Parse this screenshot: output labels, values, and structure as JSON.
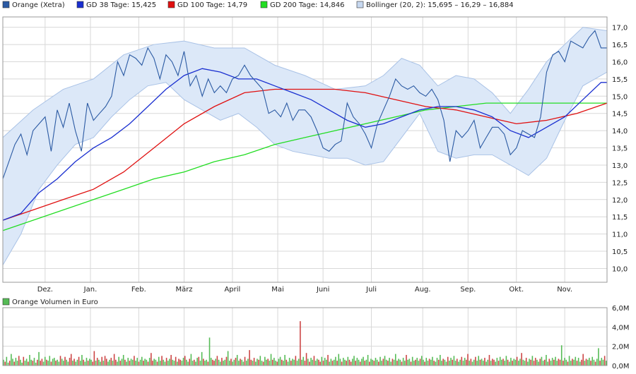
{
  "legend": {
    "orange": "Orange (Xetra)",
    "gd38": "GD 38 Tage: 15,425",
    "gd100": "GD 100 Tage: 14,79",
    "gd200": "GD 200 Tage: 14,846",
    "bollinger": "Bollinger (20, 2): 15,695 – 16,29 – 16,884",
    "volume": "Orange Volumen in Euro"
  },
  "colors": {
    "price": "#2b5aa3",
    "gd38": "#1a2fd0",
    "gd100": "#e01010",
    "gd200": "#22dd22",
    "band_fill": "#dce8f8",
    "band_line": "#a9c2e6",
    "grid": "#d8d8d8",
    "vol_up": "#55bb55",
    "vol_down": "#cc4444"
  },
  "chart_data": {
    "type": "line",
    "x_labels": [
      "Dez.",
      "Jan.",
      "Feb.",
      "März",
      "April",
      "Mai",
      "Juni",
      "Juli",
      "Aug.",
      "Sep.",
      "Okt.",
      "Nov."
    ],
    "y_ticks": [
      "10,0",
      "10,5",
      "11,0",
      "11,5",
      "12,0",
      "12,5",
      "13,0",
      "13,5",
      "14,0",
      "14,5",
      "15,0",
      "15,5",
      "16,0",
      "16,5",
      "17,0"
    ],
    "ylim": [
      9.6,
      17.3
    ],
    "vol_ticks": [
      "0,0M",
      "2,0M",
      "4,0M",
      "6,0M"
    ],
    "vol_lim": [
      0,
      6
    ],
    "x_range": [
      0,
      100
    ],
    "month_positions": [
      7,
      14.5,
      22.5,
      30,
      38,
      45.5,
      53,
      61,
      69.5,
      77,
      85,
      93
    ],
    "series": [
      {
        "name": "Orange (Xetra)",
        "points": [
          [
            0,
            12.6
          ],
          [
            1,
            13.1
          ],
          [
            2,
            13.6
          ],
          [
            3,
            13.9
          ],
          [
            4,
            13.3
          ],
          [
            5,
            14.0
          ],
          [
            6,
            14.2
          ],
          [
            7,
            14.4
          ],
          [
            8,
            13.4
          ],
          [
            9,
            14.6
          ],
          [
            10,
            14.1
          ],
          [
            11,
            14.8
          ],
          [
            12,
            14.0
          ],
          [
            13,
            13.4
          ],
          [
            14,
            14.8
          ],
          [
            15,
            14.3
          ],
          [
            16,
            14.5
          ],
          [
            17,
            14.7
          ],
          [
            18,
            15.0
          ],
          [
            19,
            16.0
          ],
          [
            20,
            15.6
          ],
          [
            21,
            16.2
          ],
          [
            22,
            16.1
          ],
          [
            23,
            15.9
          ],
          [
            24,
            16.4
          ],
          [
            25,
            16.1
          ],
          [
            26,
            15.5
          ],
          [
            27,
            16.2
          ],
          [
            28,
            16.0
          ],
          [
            29,
            15.6
          ],
          [
            30,
            16.3
          ],
          [
            31,
            15.3
          ],
          [
            32,
            15.6
          ],
          [
            33,
            15.0
          ],
          [
            34,
            15.5
          ],
          [
            35,
            15.1
          ],
          [
            36,
            15.3
          ],
          [
            37,
            15.1
          ],
          [
            38,
            15.5
          ],
          [
            39,
            15.6
          ],
          [
            40,
            15.9
          ],
          [
            41,
            15.6
          ],
          [
            42,
            15.4
          ],
          [
            43,
            15.2
          ],
          [
            44,
            14.5
          ],
          [
            45,
            14.6
          ],
          [
            46,
            14.4
          ],
          [
            47,
            14.8
          ],
          [
            48,
            14.3
          ],
          [
            49,
            14.6
          ],
          [
            50,
            14.6
          ],
          [
            51,
            14.4
          ],
          [
            52,
            14.0
          ],
          [
            53,
            13.5
          ],
          [
            54,
            13.4
          ],
          [
            55,
            13.6
          ],
          [
            56,
            13.7
          ],
          [
            57,
            14.8
          ],
          [
            58,
            14.4
          ],
          [
            59,
            14.2
          ],
          [
            60,
            13.9
          ],
          [
            61,
            13.5
          ],
          [
            62,
            14.2
          ],
          [
            63,
            14.6
          ],
          [
            64,
            15.0
          ],
          [
            65,
            15.5
          ],
          [
            66,
            15.3
          ],
          [
            67,
            15.2
          ],
          [
            68,
            15.3
          ],
          [
            69,
            15.1
          ],
          [
            70,
            15.0
          ],
          [
            71,
            15.2
          ],
          [
            72,
            14.9
          ],
          [
            73,
            14.3
          ],
          [
            74,
            13.1
          ],
          [
            75,
            14.0
          ],
          [
            76,
            13.8
          ],
          [
            77,
            14.0
          ],
          [
            78,
            14.3
          ],
          [
            79,
            13.5
          ],
          [
            80,
            13.8
          ],
          [
            81,
            14.1
          ],
          [
            82,
            14.1
          ],
          [
            83,
            13.9
          ],
          [
            84,
            13.3
          ],
          [
            85,
            13.5
          ],
          [
            86,
            14.0
          ],
          [
            87,
            13.9
          ],
          [
            88,
            13.8
          ],
          [
            89,
            14.4
          ],
          [
            90,
            15.7
          ],
          [
            91,
            16.2
          ],
          [
            92,
            16.3
          ],
          [
            93,
            16.0
          ],
          [
            94,
            16.6
          ],
          [
            95,
            16.5
          ],
          [
            96,
            16.4
          ],
          [
            97,
            16.7
          ],
          [
            98,
            16.9
          ],
          [
            99,
            16.4
          ],
          [
            100,
            16.4
          ]
        ]
      },
      {
        "name": "GD 38 Tage",
        "points": [
          [
            0,
            11.4
          ],
          [
            3,
            11.6
          ],
          [
            6,
            12.2
          ],
          [
            9,
            12.6
          ],
          [
            12,
            13.1
          ],
          [
            15,
            13.5
          ],
          [
            18,
            13.8
          ],
          [
            21,
            14.2
          ],
          [
            24,
            14.7
          ],
          [
            27,
            15.2
          ],
          [
            30,
            15.6
          ],
          [
            33,
            15.8
          ],
          [
            36,
            15.7
          ],
          [
            39,
            15.5
          ],
          [
            42,
            15.5
          ],
          [
            45,
            15.3
          ],
          [
            48,
            15.1
          ],
          [
            51,
            14.9
          ],
          [
            54,
            14.6
          ],
          [
            57,
            14.3
          ],
          [
            60,
            14.1
          ],
          [
            63,
            14.2
          ],
          [
            66,
            14.4
          ],
          [
            69,
            14.6
          ],
          [
            72,
            14.7
          ],
          [
            75,
            14.7
          ],
          [
            78,
            14.6
          ],
          [
            81,
            14.4
          ],
          [
            84,
            14.0
          ],
          [
            87,
            13.8
          ],
          [
            90,
            14.1
          ],
          [
            93,
            14.4
          ],
          [
            96,
            14.9
          ],
          [
            99,
            15.4
          ],
          [
            100,
            15.4
          ]
        ]
      },
      {
        "name": "GD 100 Tage",
        "points": [
          [
            0,
            11.4
          ],
          [
            5,
            11.7
          ],
          [
            10,
            12.0
          ],
          [
            15,
            12.3
          ],
          [
            20,
            12.8
          ],
          [
            25,
            13.5
          ],
          [
            30,
            14.2
          ],
          [
            35,
            14.7
          ],
          [
            40,
            15.1
          ],
          [
            45,
            15.2
          ],
          [
            50,
            15.2
          ],
          [
            55,
            15.2
          ],
          [
            60,
            15.1
          ],
          [
            65,
            14.9
          ],
          [
            70,
            14.7
          ],
          [
            75,
            14.6
          ],
          [
            80,
            14.4
          ],
          [
            85,
            14.2
          ],
          [
            90,
            14.3
          ],
          [
            95,
            14.5
          ],
          [
            100,
            14.8
          ]
        ]
      },
      {
        "name": "GD 200 Tage",
        "points": [
          [
            0,
            11.1
          ],
          [
            5,
            11.4
          ],
          [
            10,
            11.7
          ],
          [
            15,
            12.0
          ],
          [
            20,
            12.3
          ],
          [
            25,
            12.6
          ],
          [
            30,
            12.8
          ],
          [
            35,
            13.1
          ],
          [
            40,
            13.3
          ],
          [
            45,
            13.6
          ],
          [
            50,
            13.8
          ],
          [
            55,
            14.0
          ],
          [
            60,
            14.2
          ],
          [
            65,
            14.4
          ],
          [
            70,
            14.6
          ],
          [
            75,
            14.7
          ],
          [
            80,
            14.8
          ],
          [
            85,
            14.8
          ],
          [
            90,
            14.8
          ],
          [
            95,
            14.8
          ],
          [
            100,
            14.8
          ]
        ]
      }
    ],
    "bollinger_upper": [
      [
        0,
        13.8
      ],
      [
        5,
        14.6
      ],
      [
        10,
        15.2
      ],
      [
        15,
        15.5
      ],
      [
        20,
        16.2
      ],
      [
        25,
        16.5
      ],
      [
        30,
        16.6
      ],
      [
        35,
        16.4
      ],
      [
        40,
        16.4
      ],
      [
        45,
        15.9
      ],
      [
        50,
        15.6
      ],
      [
        55,
        15.2
      ],
      [
        60,
        15.3
      ],
      [
        63,
        15.6
      ],
      [
        66,
        16.1
      ],
      [
        69,
        15.9
      ],
      [
        72,
        15.3
      ],
      [
        75,
        15.6
      ],
      [
        78,
        15.5
      ],
      [
        81,
        15.1
      ],
      [
        84,
        14.5
      ],
      [
        87,
        15.2
      ],
      [
        90,
        16.0
      ],
      [
        93,
        16.5
      ],
      [
        96,
        17.0
      ],
      [
        100,
        16.9
      ]
    ],
    "bollinger_lower": [
      [
        0,
        10.1
      ],
      [
        3,
        11.0
      ],
      [
        6,
        12.3
      ],
      [
        9,
        13.0
      ],
      [
        12,
        13.6
      ],
      [
        15,
        13.8
      ],
      [
        18,
        14.4
      ],
      [
        21,
        14.9
      ],
      [
        24,
        15.3
      ],
      [
        27,
        15.4
      ],
      [
        30,
        14.9
      ],
      [
        33,
        14.6
      ],
      [
        36,
        14.3
      ],
      [
        39,
        14.5
      ],
      [
        42,
        14.1
      ],
      [
        45,
        13.6
      ],
      [
        48,
        13.4
      ],
      [
        51,
        13.3
      ],
      [
        54,
        13.2
      ],
      [
        57,
        13.2
      ],
      [
        60,
        13.0
      ],
      [
        63,
        13.1
      ],
      [
        66,
        13.8
      ],
      [
        69,
        14.5
      ],
      [
        72,
        13.4
      ],
      [
        75,
        13.2
      ],
      [
        78,
        13.3
      ],
      [
        81,
        13.3
      ],
      [
        84,
        13.0
      ],
      [
        87,
        12.7
      ],
      [
        90,
        13.2
      ],
      [
        93,
        14.3
      ],
      [
        96,
        15.3
      ],
      [
        100,
        15.7
      ]
    ],
    "volume": [
      0.6,
      0.4,
      0.9,
      0.3,
      0.5,
      1.2,
      0.7,
      0.4,
      0.8,
      0.5,
      1.0,
      0.6,
      0.3,
      0.9,
      0.5,
      0.7,
      0.4,
      1.1,
      0.6,
      0.5,
      0.8,
      0.3,
      0.6,
      1.4,
      0.5,
      0.7,
      0.4,
      0.9,
      0.6,
      0.5,
      1.0,
      0.4,
      0.7,
      0.8,
      0.5,
      0.6,
      0.4,
      1.0,
      0.7,
      0.5,
      0.9,
      0.6,
      0.4,
      0.8,
      1.2,
      0.5,
      0.7,
      0.4,
      0.6,
      0.9,
      0.5,
      1.1,
      0.6,
      0.4,
      0.8,
      0.5,
      0.7,
      0.6,
      0.4,
      1.5,
      0.5,
      0.8,
      0.6,
      0.4,
      0.9,
      0.5,
      1.0,
      0.7,
      0.4,
      0.6,
      0.8,
      0.5,
      1.2,
      0.6,
      0.4,
      0.9,
      0.5,
      0.7,
      1.1,
      0.6,
      0.4,
      0.8,
      0.5,
      0.7,
      0.6,
      1.0,
      0.5,
      0.8,
      0.4,
      0.6,
      0.9,
      0.5,
      0.7,
      0.6,
      0.4,
      0.8,
      1.3,
      0.5,
      0.7,
      0.6,
      0.4,
      0.9,
      0.5,
      1.0,
      0.6,
      0.4,
      0.8,
      0.5,
      0.7,
      1.1,
      0.6,
      0.5,
      0.9,
      0.4,
      0.7,
      0.6,
      0.5,
      0.8,
      1.0,
      0.6,
      0.4,
      0.7,
      1.2,
      0.5,
      0.6,
      0.4,
      0.8,
      0.9,
      0.5,
      1.4,
      0.7,
      0.5,
      0.6,
      0.4,
      2.9,
      0.8,
      0.6,
      0.5,
      0.7,
      1.0,
      0.6,
      0.4,
      0.8,
      0.5,
      0.6,
      0.9,
      1.5,
      0.5,
      0.7,
      0.4,
      0.6,
      0.8,
      1.1,
      0.5,
      0.7,
      0.6,
      0.4,
      0.9,
      0.5,
      0.7,
      1.6,
      0.6,
      0.5,
      0.8,
      0.4,
      0.7,
      0.6,
      1.0,
      0.5,
      0.4,
      0.9,
      0.6,
      0.7,
      0.5,
      1.2,
      0.6,
      0.8,
      0.5,
      0.4,
      0.7,
      0.9,
      0.6,
      0.5,
      1.1,
      0.6,
      0.4,
      0.8,
      0.5,
      0.7,
      0.6,
      1.0,
      0.5,
      0.7,
      4.6,
      0.6,
      0.9,
      0.5,
      1.3,
      0.7,
      0.4,
      0.8,
      0.6,
      1.0,
      0.5,
      0.7,
      0.6,
      0.4,
      0.9,
      0.5,
      0.8,
      0.6,
      1.1,
      0.4,
      0.7,
      0.5,
      0.6,
      0.9,
      0.5,
      1.2,
      0.7,
      0.4,
      0.8,
      0.6,
      0.5,
      0.9,
      0.6,
      0.4,
      0.7,
      1.0,
      0.5,
      0.8,
      0.6,
      0.4,
      0.7,
      0.9,
      0.5,
      0.6,
      1.1,
      0.4,
      0.7,
      0.6,
      0.5,
      0.8,
      0.6,
      0.4,
      0.9,
      0.5,
      0.7,
      1.0,
      0.6,
      0.5,
      0.8,
      0.4,
      0.7,
      0.6,
      1.2,
      0.5,
      0.7,
      0.6,
      0.4,
      0.8,
      0.5,
      1.1,
      0.6,
      0.7,
      0.4,
      0.9,
      0.5,
      0.6,
      0.8,
      0.5,
      0.7,
      1.0,
      0.6,
      0.4,
      0.8,
      0.5,
      0.7,
      0.6,
      0.9,
      0.5,
      0.4,
      0.8,
      0.6,
      1.1,
      0.5,
      0.7,
      0.6,
      0.4,
      0.9,
      0.5,
      0.8,
      0.6,
      1.0,
      0.5,
      0.7,
      0.4,
      0.6,
      0.9,
      0.5,
      0.8,
      0.6,
      1.2,
      0.5,
      0.7,
      0.4,
      0.6,
      0.9,
      0.5,
      1.0,
      0.6,
      0.7,
      0.5,
      0.8,
      0.4,
      0.6,
      1.1,
      0.5,
      0.7,
      0.6,
      0.4,
      0.8,
      0.5,
      0.9,
      0.6,
      0.7,
      0.5,
      1.0,
      0.6,
      0.4,
      0.8,
      0.5,
      0.7,
      0.6,
      0.9,
      0.5,
      0.7,
      1.3,
      0.6,
      0.5,
      0.8,
      0.4,
      0.7,
      0.6,
      1.0,
      0.5,
      0.8,
      0.6,
      0.4,
      0.7,
      0.9,
      0.5,
      0.6,
      1.1,
      0.4,
      0.7,
      0.5,
      0.8,
      0.6,
      0.9,
      0.5,
      0.7,
      0.6,
      2.1,
      0.5,
      0.8,
      0.6,
      0.4,
      1.0,
      0.5,
      0.7,
      0.6,
      0.9,
      0.5,
      0.8,
      0.4,
      0.6,
      1.2,
      0.5,
      0.7,
      0.6,
      0.8,
      0.5,
      0.9,
      0.6,
      0.4,
      0.7,
      1.8,
      0.5,
      0.8,
      0.6,
      1.0,
      0.5
    ],
    "volume_down_idx": [
      10,
      24,
      44,
      59,
      66,
      72,
      96,
      114,
      137,
      161,
      175,
      197,
      206,
      225,
      262,
      283,
      302,
      318,
      345,
      362,
      377,
      391,
      405
    ],
    "volume_up_idx": [
      5,
      23,
      29,
      51,
      78,
      104,
      130,
      146,
      168,
      188,
      210,
      235,
      270,
      296,
      330,
      356,
      370,
      384,
      399
    ]
  }
}
